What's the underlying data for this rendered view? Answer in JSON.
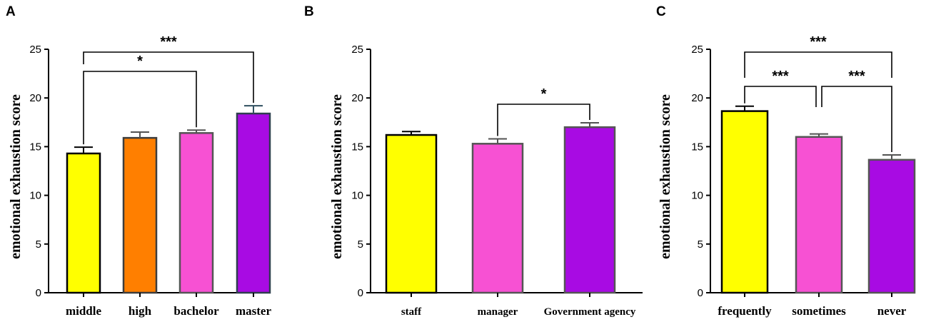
{
  "chart_data": [
    {
      "type": "bar",
      "panel": "A",
      "ylabel": "emotional exhaustion score",
      "ylim": [
        0,
        25
      ],
      "yticks": [
        0,
        5,
        10,
        15,
        20,
        25
      ],
      "categories": [
        "middle",
        "high",
        "bachelor",
        "master"
      ],
      "values": [
        14.3,
        15.9,
        16.4,
        18.4
      ],
      "errors": [
        0.65,
        0.6,
        0.3,
        0.8
      ],
      "colors": [
        "#ffff00",
        "#ff7f00",
        "#f751d3",
        "#a80be3"
      ],
      "significance": [
        {
          "from": 0,
          "to": 2,
          "label": "*"
        },
        {
          "from": 0,
          "to": 3,
          "label": "***"
        }
      ]
    },
    {
      "type": "bar",
      "panel": "B",
      "ylabel": "emotional exhaustion score",
      "ylim": [
        0,
        25
      ],
      "yticks": [
        0,
        5,
        10,
        15,
        20,
        25
      ],
      "categories": [
        "staff",
        "manager",
        "Government agency"
      ],
      "values": [
        16.2,
        15.3,
        17.0
      ],
      "errors": [
        0.35,
        0.5,
        0.45
      ],
      "colors": [
        "#ffff00",
        "#f751d3",
        "#a80be3"
      ],
      "significance": [
        {
          "from": 1,
          "to": 2,
          "label": "*"
        }
      ]
    },
    {
      "type": "bar",
      "panel": "C",
      "ylabel": "emotional exhaustion score",
      "ylim": [
        0,
        25
      ],
      "yticks": [
        0,
        5,
        10,
        15,
        20,
        25
      ],
      "categories": [
        "frequently",
        "sometimes",
        "never"
      ],
      "values": [
        18.65,
        16.0,
        13.65
      ],
      "errors": [
        0.5,
        0.3,
        0.5
      ],
      "colors": [
        "#ffff00",
        "#f751d3",
        "#a80be3"
      ],
      "significance": [
        {
          "from": 0,
          "to": 1,
          "label": "***"
        },
        {
          "from": 1,
          "to": 2,
          "label": "***"
        },
        {
          "from": 0,
          "to": 2,
          "label": "***"
        }
      ]
    }
  ]
}
